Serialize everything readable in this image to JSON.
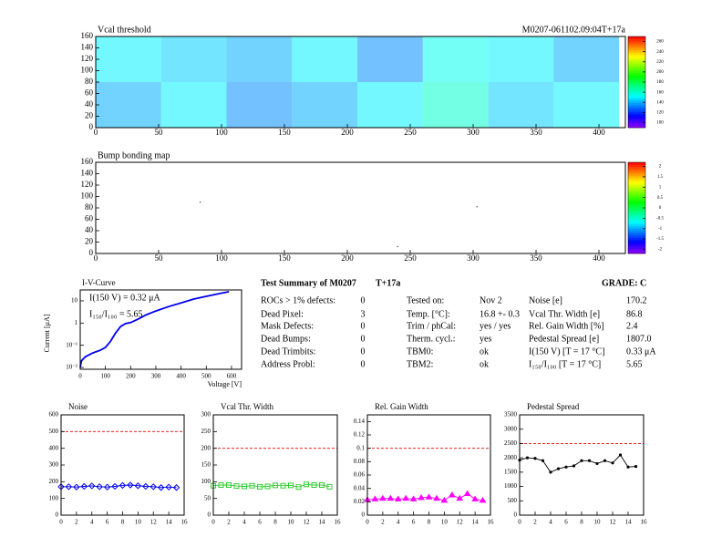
{
  "chart_data": [
    {
      "type": "heatmap",
      "title": "Vcal threshold",
      "subtitle": "M0207-061102.09:04T+17a",
      "x": [
        0,
        52,
        104,
        156,
        208,
        260,
        312,
        364,
        416
      ],
      "y": [
        0,
        80,
        160
      ],
      "values": [
        [
          140,
          150,
          135,
          140,
          150,
          160,
          145,
          150
        ],
        [
          150,
          145,
          140,
          150,
          135,
          155,
          150,
          140
        ]
      ],
      "xlim": [
        0,
        421
      ],
      "ylim": [
        0,
        160
      ],
      "xticks": [
        0,
        50,
        100,
        150,
        200,
        250,
        300,
        350,
        400
      ],
      "yticks": [
        0,
        20,
        40,
        60,
        80,
        100,
        120,
        140,
        160
      ],
      "zlim": [
        90,
        270
      ],
      "zticks": [
        100,
        120,
        140,
        160,
        180,
        200,
        220,
        240,
        260
      ]
    },
    {
      "type": "scatter",
      "title": "Bump bonding map",
      "x": [
        83,
        303,
        240
      ],
      "y": [
        90,
        82,
        12
      ],
      "color": "#333333",
      "xlim": [
        0,
        421
      ],
      "ylim": [
        0,
        160
      ],
      "xticks": [
        0,
        50,
        100,
        150,
        200,
        250,
        300,
        350,
        400
      ],
      "yticks": [
        0,
        20,
        40,
        60,
        80,
        100,
        120,
        140,
        160
      ],
      "zlim": [
        -2.2,
        2.2
      ],
      "zticks": [
        -2,
        -1.5,
        -1,
        -0.5,
        0,
        0.5,
        1,
        1.5,
        2
      ]
    },
    {
      "type": "line",
      "title": "I-V-Curve",
      "xlabel": "Voltage [V]",
      "ylabel": "Current [μA]",
      "log_y": true,
      "color": "#0000ee",
      "annotations": [
        "I(150 V) = 0.32 μA",
        "I₁₅₀/I₁₀₀ = 5.65"
      ],
      "x": [
        0,
        5,
        20,
        50,
        80,
        100,
        120,
        140,
        160,
        180,
        200,
        230,
        260,
        300,
        350,
        400,
        450,
        500,
        550,
        590
      ],
      "values": [
        0.01,
        0.02,
        0.03,
        0.045,
        0.06,
        0.08,
        0.15,
        0.35,
        0.7,
        0.95,
        1.05,
        1.5,
        2.3,
        3.5,
        5.5,
        8,
        12,
        16,
        21,
        26
      ],
      "xlim": [
        0,
        640
      ],
      "ylim": [
        0.0083,
        31
      ],
      "xticks": [
        0,
        100,
        200,
        300,
        400,
        500,
        600
      ],
      "yticks": [
        10,
        1,
        {
          "value": 0.1,
          "label": "10⁻¹"
        },
        {
          "value": 0.01,
          "label": "10⁻²"
        }
      ]
    },
    {
      "type": "line",
      "title": "Noise",
      "color": "#0000ee",
      "marker": "diamond",
      "limit": 500,
      "x": [
        0,
        1,
        2,
        3,
        4,
        5,
        6,
        7,
        8,
        9,
        10,
        11,
        12,
        13,
        14,
        15
      ],
      "values": [
        170,
        170,
        168,
        172,
        175,
        170,
        168,
        172,
        178,
        180,
        176,
        172,
        170,
        165,
        168,
        165
      ],
      "xlim": [
        0,
        16
      ],
      "ylim": [
        0,
        600
      ],
      "xticks": [
        0,
        2,
        4,
        6,
        8,
        10,
        12,
        14,
        16
      ],
      "yticks": [
        0,
        100,
        200,
        300,
        400,
        500,
        600
      ]
    },
    {
      "type": "line",
      "title": "Vcal Thr. Width",
      "color": "#33cc33",
      "marker": "square",
      "limit": 200,
      "x": [
        0,
        1,
        2,
        3,
        4,
        5,
        6,
        7,
        8,
        9,
        10,
        11,
        12,
        13,
        14,
        15
      ],
      "values": [
        88,
        90,
        90,
        87,
        86,
        88,
        85,
        86,
        89,
        88,
        89,
        84,
        92,
        90,
        90,
        85
      ],
      "xlim": [
        0,
        16
      ],
      "ylim": [
        0,
        300
      ],
      "xticks": [
        0,
        2,
        4,
        6,
        8,
        10,
        12,
        14,
        16
      ],
      "yticks": [
        0,
        50,
        100,
        150,
        200,
        250,
        300
      ]
    },
    {
      "type": "line",
      "title": "Rel. Gain Width",
      "color": "#ff00ff",
      "marker": "triangle",
      "limit": 0.1,
      "x": [
        0,
        1,
        2,
        3,
        4,
        5,
        6,
        7,
        8,
        9,
        10,
        11,
        12,
        13,
        14,
        15
      ],
      "values": [
        0.023,
        0.024,
        0.025,
        0.025,
        0.024,
        0.025,
        0.024,
        0.026,
        0.027,
        0.025,
        0.022,
        0.03,
        0.025,
        0.032,
        0.024,
        0.022
      ],
      "xlim": [
        0,
        16
      ],
      "ylim": [
        0,
        0.15
      ],
      "xticks": [
        0,
        2,
        4,
        6,
        8,
        10,
        12,
        14,
        16
      ],
      "yticks": [
        0,
        0.02,
        0.04,
        0.06,
        0.08,
        0.1,
        0.12,
        0.14
      ]
    },
    {
      "type": "line",
      "title": "Pedestal Spread",
      "color": "#000000",
      "marker": "dot",
      "limit": 2500,
      "x": [
        0,
        1,
        2,
        3,
        4,
        5,
        6,
        7,
        8,
        9,
        10,
        11,
        12,
        13,
        14,
        15
      ],
      "values": [
        1920,
        2000,
        1980,
        1900,
        1500,
        1620,
        1680,
        1720,
        1900,
        1900,
        1800,
        1900,
        1820,
        2100,
        1680,
        1700
      ],
      "xlim": [
        0,
        16
      ],
      "ylim": [
        0,
        3500
      ],
      "xticks": [
        0,
        2,
        4,
        6,
        8,
        10,
        12,
        14,
        16
      ],
      "yticks": [
        0,
        500,
        1000,
        1500,
        2000,
        2500,
        3000,
        3500
      ]
    }
  ],
  "summary": {
    "title": "Test Summary of M0207",
    "run": "T+17a",
    "grade": "GRADE:  C",
    "left": [
      [
        "ROCs > 1% defects:",
        "0"
      ],
      [
        "Dead Pixel:",
        "3"
      ],
      [
        "Mask Defects:",
        "0"
      ],
      [
        "Dead Bumps:",
        "0"
      ],
      [
        "Dead Trimbits:",
        "0"
      ],
      [
        "Address Probl:",
        "0"
      ]
    ],
    "middle": [
      [
        "Tested on:",
        "Nov 2"
      ],
      [
        "Temp. [°C]:",
        "16.8 +- 0.3"
      ],
      [
        "Trim / phCal:",
        "yes / yes"
      ],
      [
        "Therm. cycl.:",
        "yes"
      ],
      [
        "TBM0:",
        "ok"
      ],
      [
        "TBM2:",
        "ok"
      ]
    ],
    "right": [
      [
        "Noise [e]",
        "170.2"
      ],
      [
        "Vcal Thr. Width [e]",
        "86.8"
      ],
      [
        "Rel. Gain Width [%]",
        "2.4"
      ],
      [
        "Pedestal Spread [e]",
        "1807.0"
      ],
      [
        "I(150 V) [T = 17 °C]",
        "0.33 μA"
      ],
      [
        "I₁₅₀/I₁₀₀  [T = 17 °C]",
        "5.65"
      ]
    ]
  }
}
